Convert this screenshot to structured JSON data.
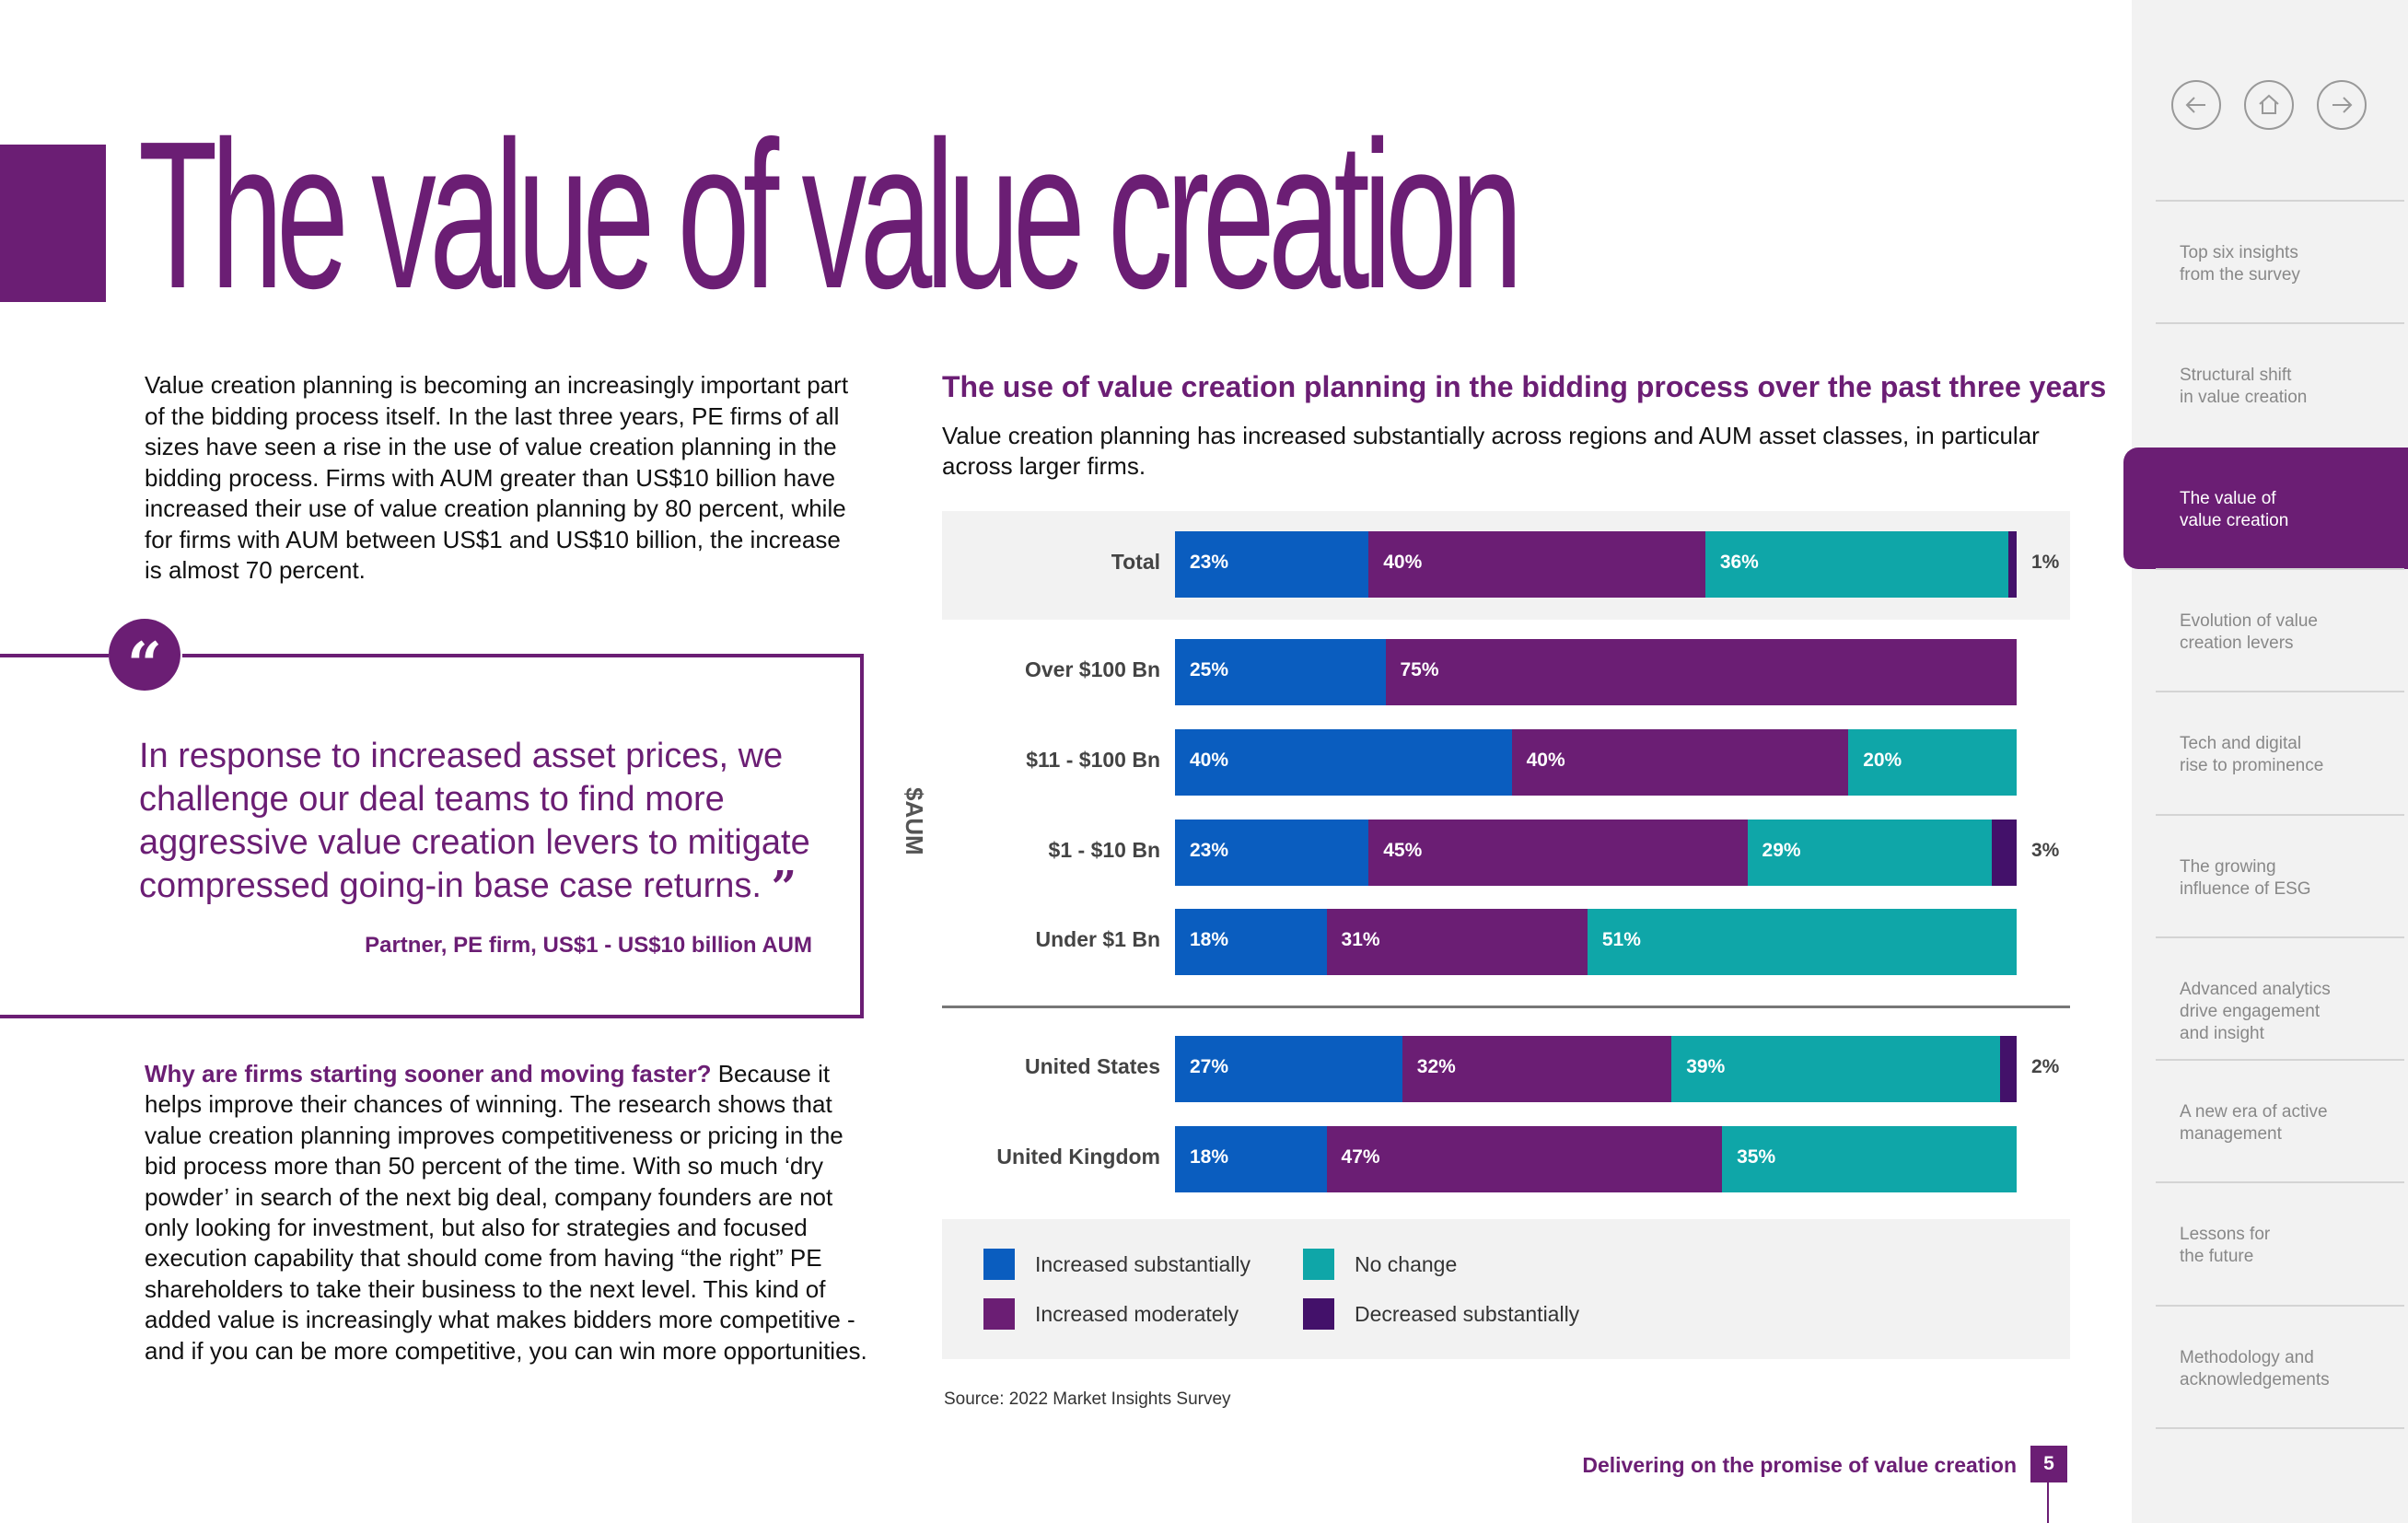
{
  "page": {
    "title": "The value of value creation",
    "intro": "Value creation planning is becoming an increasingly important part of the bidding process itself. In the last three years, PE firms of all sizes have seen a rise in the use of value creation planning in the bidding process. Firms with AUM greater than US$10 billion have increased their use of value creation planning by 80 percent, while for firms with AUM between US$1 and US$10 billion, the increase is almost 70 percent.",
    "quote": {
      "mark": "“",
      "close_mark": "”",
      "text": "In response to increased asset prices, we challenge our deal teams to find more aggressive value creation levers to mitigate compressed going-in base case returns.",
      "attribution": "Partner, PE firm, US$1 - US$10 billion AUM"
    },
    "body2_lead": "Why are firms starting sooner and moving faster?",
    "body2_rest": " Because it helps improve their chances of winning. The research shows that value creation planning improves competitiveness or pricing in the bid process more than 50 percent of the time. With so much ‘dry powder’ in search of the next big deal, company founders are not only looking for investment, but also for strategies and focused execution capability that should come from having “the right” PE shareholders to take their business to the next level. This kind of added value is increasingly what makes bidders more competitive - and if you can be more competitive, you can win more opportunities.",
    "source": "Source: 2022 Market Insights Survey",
    "footer": "Delivering on the promise of value creation",
    "page_number": "5"
  },
  "chart_data": {
    "type": "bar",
    "orientation": "horizontal-stacked-percent",
    "title": "The use of value creation planning in the bidding process over the past three years",
    "subtitle": "Value creation planning has increased substantially across regions and AUM asset classes, in particular across larger firms.",
    "group_label": "$AUM",
    "categories": [
      "Total",
      "Over $100 Bn",
      "$11 - $100 Bn",
      "$1 - $10 Bn",
      "Under $1 Bn",
      "United States",
      "United Kingdom"
    ],
    "series": [
      {
        "name": "Increased substantially",
        "color": "#0a5dbf",
        "values": [
          23,
          25,
          40,
          23,
          18,
          27,
          18
        ]
      },
      {
        "name": "Increased moderately",
        "color": "#6b1e74",
        "values": [
          40,
          75,
          40,
          45,
          31,
          32,
          47
        ]
      },
      {
        "name": "No change",
        "color": "#0fa6a8",
        "values": [
          36,
          0,
          20,
          29,
          51,
          39,
          35
        ]
      },
      {
        "name": "Decreased substantially",
        "color": "#43116a",
        "values": [
          1,
          0,
          0,
          3,
          0,
          2,
          0
        ]
      }
    ],
    "xlim": [
      0,
      100
    ],
    "legend_position": "bottom"
  },
  "sidebar": {
    "nav": {
      "back": "arrow-left",
      "home": "home",
      "forward": "arrow-right"
    },
    "items": [
      {
        "label": "Top six insights\nfrom the survey",
        "active": false
      },
      {
        "label": "Structural shift\nin value creation",
        "active": false
      },
      {
        "label": "The value of\nvalue creation",
        "active": true
      },
      {
        "label": "Evolution of value\ncreation levers",
        "active": false
      },
      {
        "label": "Tech and digital\nrise to prominence",
        "active": false
      },
      {
        "label": "The growing\ninfluence of ESG",
        "active": false
      },
      {
        "label": "Advanced analytics\ndrive engagement\nand insight",
        "active": false
      },
      {
        "label": "A new era of active\nmanagement",
        "active": false
      },
      {
        "label": "Lessons for\nthe future",
        "active": false
      },
      {
        "label": "Methodology and\nacknowledgements",
        "active": false
      }
    ]
  }
}
